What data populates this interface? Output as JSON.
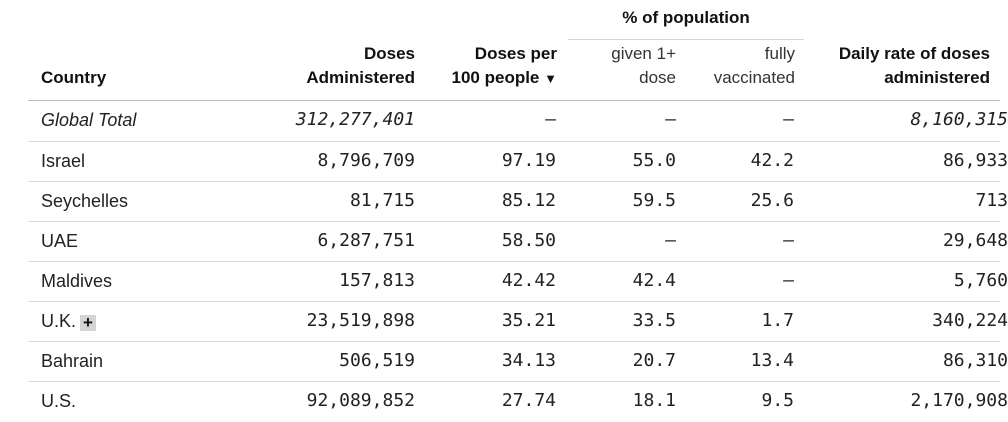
{
  "header": {
    "country": "Country",
    "doses_line1": "Doses",
    "doses_line2": "Administered",
    "per100_line1": "Doses per",
    "per100_line2": "100 people",
    "sort_arrow": "▼",
    "pop_group": "% of population",
    "given_line1": "given 1+",
    "given_line2": "dose",
    "fully_line1": "fully",
    "fully_line2": "vaccinated",
    "daily_line1": "Daily rate of doses",
    "daily_line2": "administered"
  },
  "rows": [
    {
      "country": "Global Total",
      "doses": "312,277,401",
      "per100": "–",
      "given": "–",
      "fully": "–",
      "daily": "8,160,315"
    },
    {
      "country": "Israel",
      "doses": "8,796,709",
      "per100": "97.19",
      "given": "55.0",
      "fully": "42.2",
      "daily": "86,933"
    },
    {
      "country": "Seychelles",
      "doses": "81,715",
      "per100": "85.12",
      "given": "59.5",
      "fully": "25.6",
      "daily": "713"
    },
    {
      "country": "UAE",
      "doses": "6,287,751",
      "per100": "58.50",
      "given": "–",
      "fully": "–",
      "daily": "29,648"
    },
    {
      "country": "Maldives",
      "doses": "157,813",
      "per100": "42.42",
      "given": "42.4",
      "fully": "–",
      "daily": "5,760"
    },
    {
      "country": "U.K.",
      "expand": "+",
      "doses": "23,519,898",
      "per100": "35.21",
      "given": "33.5",
      "fully": "1.7",
      "daily": "340,224"
    },
    {
      "country": "Bahrain",
      "doses": "506,519",
      "per100": "34.13",
      "given": "20.7",
      "fully": "13.4",
      "daily": "86,310"
    },
    {
      "country": "U.S.",
      "doses": "92,089,852",
      "per100": "27.74",
      "given": "18.1",
      "fully": "9.5",
      "daily": "2,170,908"
    }
  ]
}
